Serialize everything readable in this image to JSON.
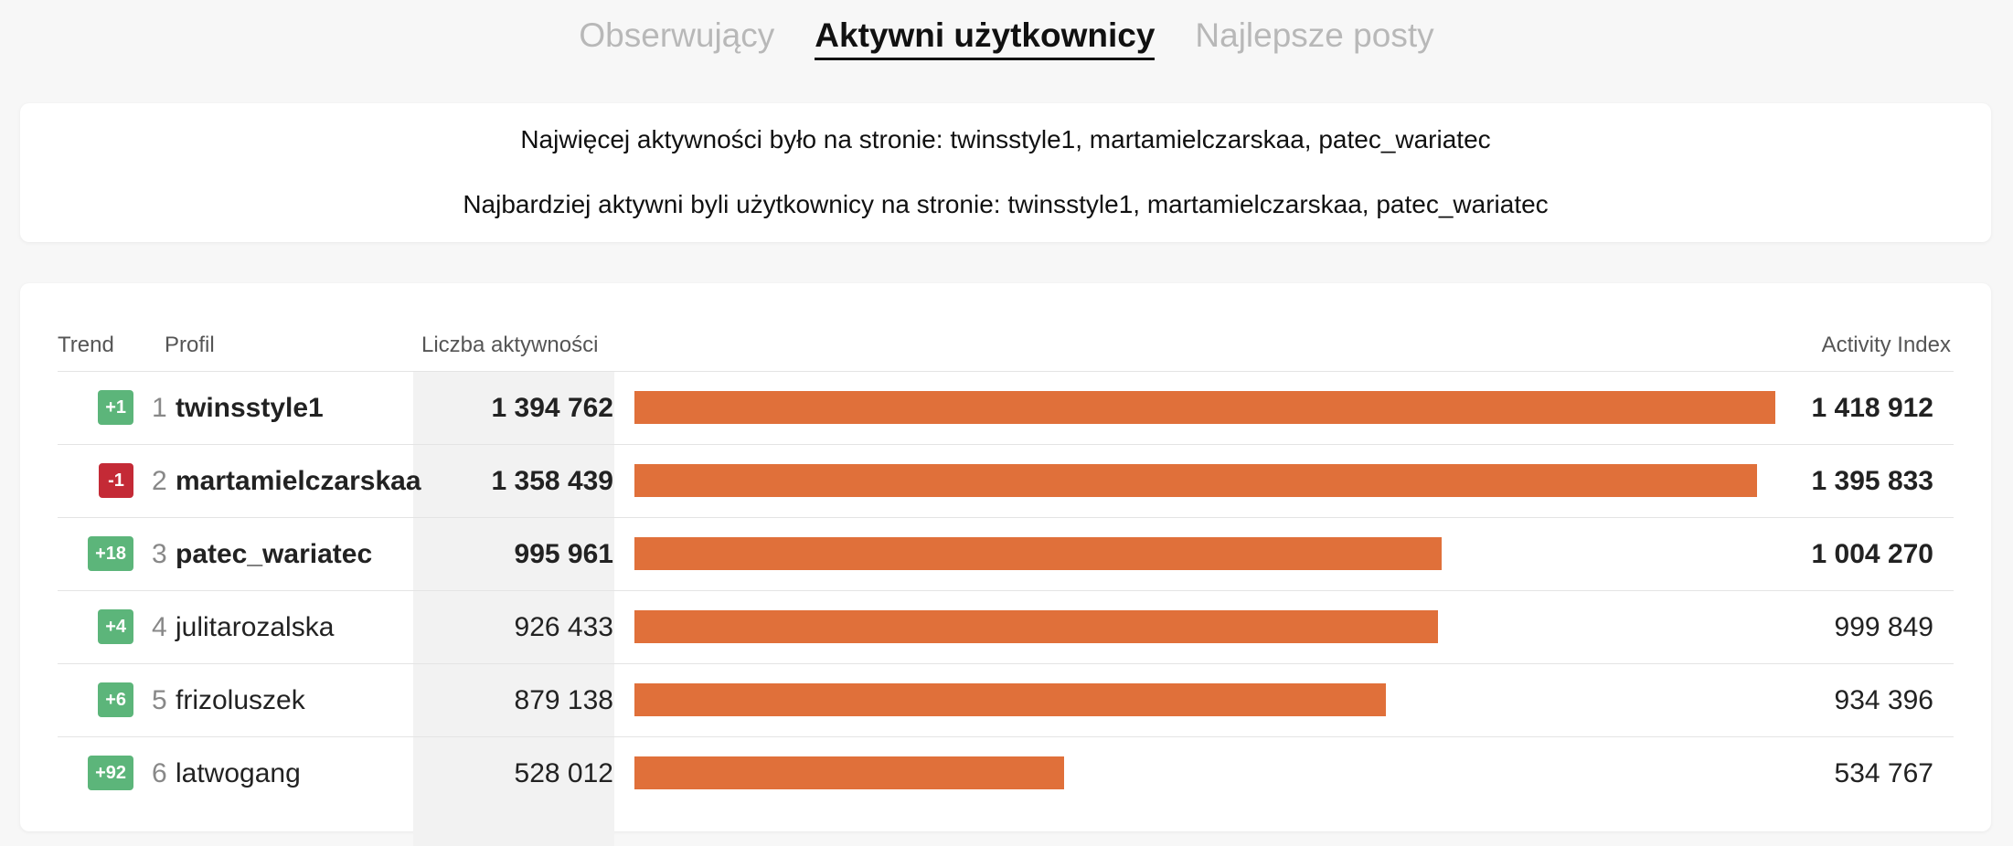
{
  "tabs": [
    {
      "label": "Obserwujący",
      "active": false
    },
    {
      "label": "Aktywni użytkownicy",
      "active": true
    },
    {
      "label": "Najlepsze posty",
      "active": false
    }
  ],
  "summary": {
    "line1": "Najwięcej aktywności było na stronie: twinsstyle1, martamielczarskaa, patec_wariatec",
    "line2": "Najbardziej aktywni byli użytkownicy na stronie: twinsstyle1, martamielczarskaa, patec_wariatec"
  },
  "table": {
    "headers": {
      "trend": "Trend",
      "profil": "Profil",
      "liczba": "Liczba aktywności",
      "index": "Activity Index"
    },
    "max_index": 1418912,
    "rows": [
      {
        "trend": "+1",
        "trend_dir": "up",
        "rank": "1",
        "name": "twinsstyle1",
        "count": "1 394 762",
        "index": "1 418 912",
        "index_value": 1418912,
        "bold": true
      },
      {
        "trend": "-1",
        "trend_dir": "down",
        "rank": "2",
        "name": "martamielczarskaa",
        "count": "1 358 439",
        "index": "1 395 833",
        "index_value": 1395833,
        "bold": true
      },
      {
        "trend": "+18",
        "trend_dir": "up",
        "rank": "3",
        "name": "patec_wariatec",
        "count": "995 961",
        "index": "1 004 270",
        "index_value": 1004270,
        "bold": true
      },
      {
        "trend": "+4",
        "trend_dir": "up",
        "rank": "4",
        "name": "julitarozalska",
        "count": "926 433",
        "index": "999 849",
        "index_value": 999849,
        "bold": false
      },
      {
        "trend": "+6",
        "trend_dir": "up",
        "rank": "5",
        "name": "frizoluszek",
        "count": "879 138",
        "index": "934 396",
        "index_value": 934396,
        "bold": false
      },
      {
        "trend": "+92",
        "trend_dir": "up",
        "rank": "6",
        "name": "latwogang",
        "count": "528 012",
        "index": "534 767",
        "index_value": 534767,
        "bold": false
      }
    ]
  },
  "colors": {
    "bar": "#e0703a",
    "trend_up": "#5cb57a",
    "trend_down": "#c42a36"
  }
}
